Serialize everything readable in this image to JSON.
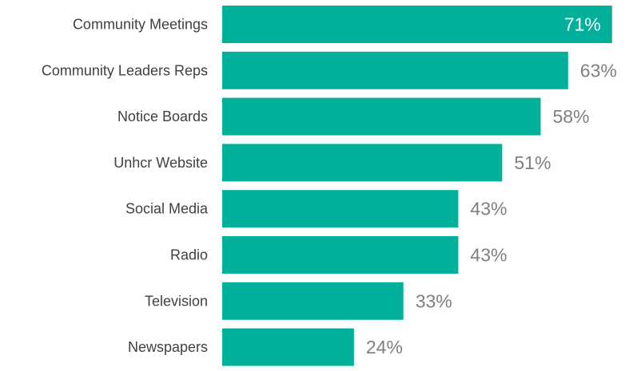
{
  "chart_data": {
    "type": "bar",
    "orientation": "horizontal",
    "categories": [
      "Community Meetings",
      "Community Leaders Reps",
      "Notice Boards",
      "Unhcr Website",
      "Social Media",
      "Radio",
      "Television",
      "Newspapers"
    ],
    "values": [
      71,
      63,
      58,
      51,
      43,
      43,
      33,
      24
    ],
    "value_labels": [
      "71%",
      "63%",
      "58%",
      "51%",
      "43%",
      "43%",
      "33%",
      "24%"
    ],
    "unit": "%",
    "title": "",
    "xlabel": "",
    "ylabel": "",
    "xlim": [
      0,
      100
    ],
    "grid": false,
    "legend": "none",
    "colors": {
      "bar": "#00b09b",
      "label_outside": "#7f7f7f",
      "label_inside": "#ffffff",
      "category_text": "#404040"
    }
  }
}
